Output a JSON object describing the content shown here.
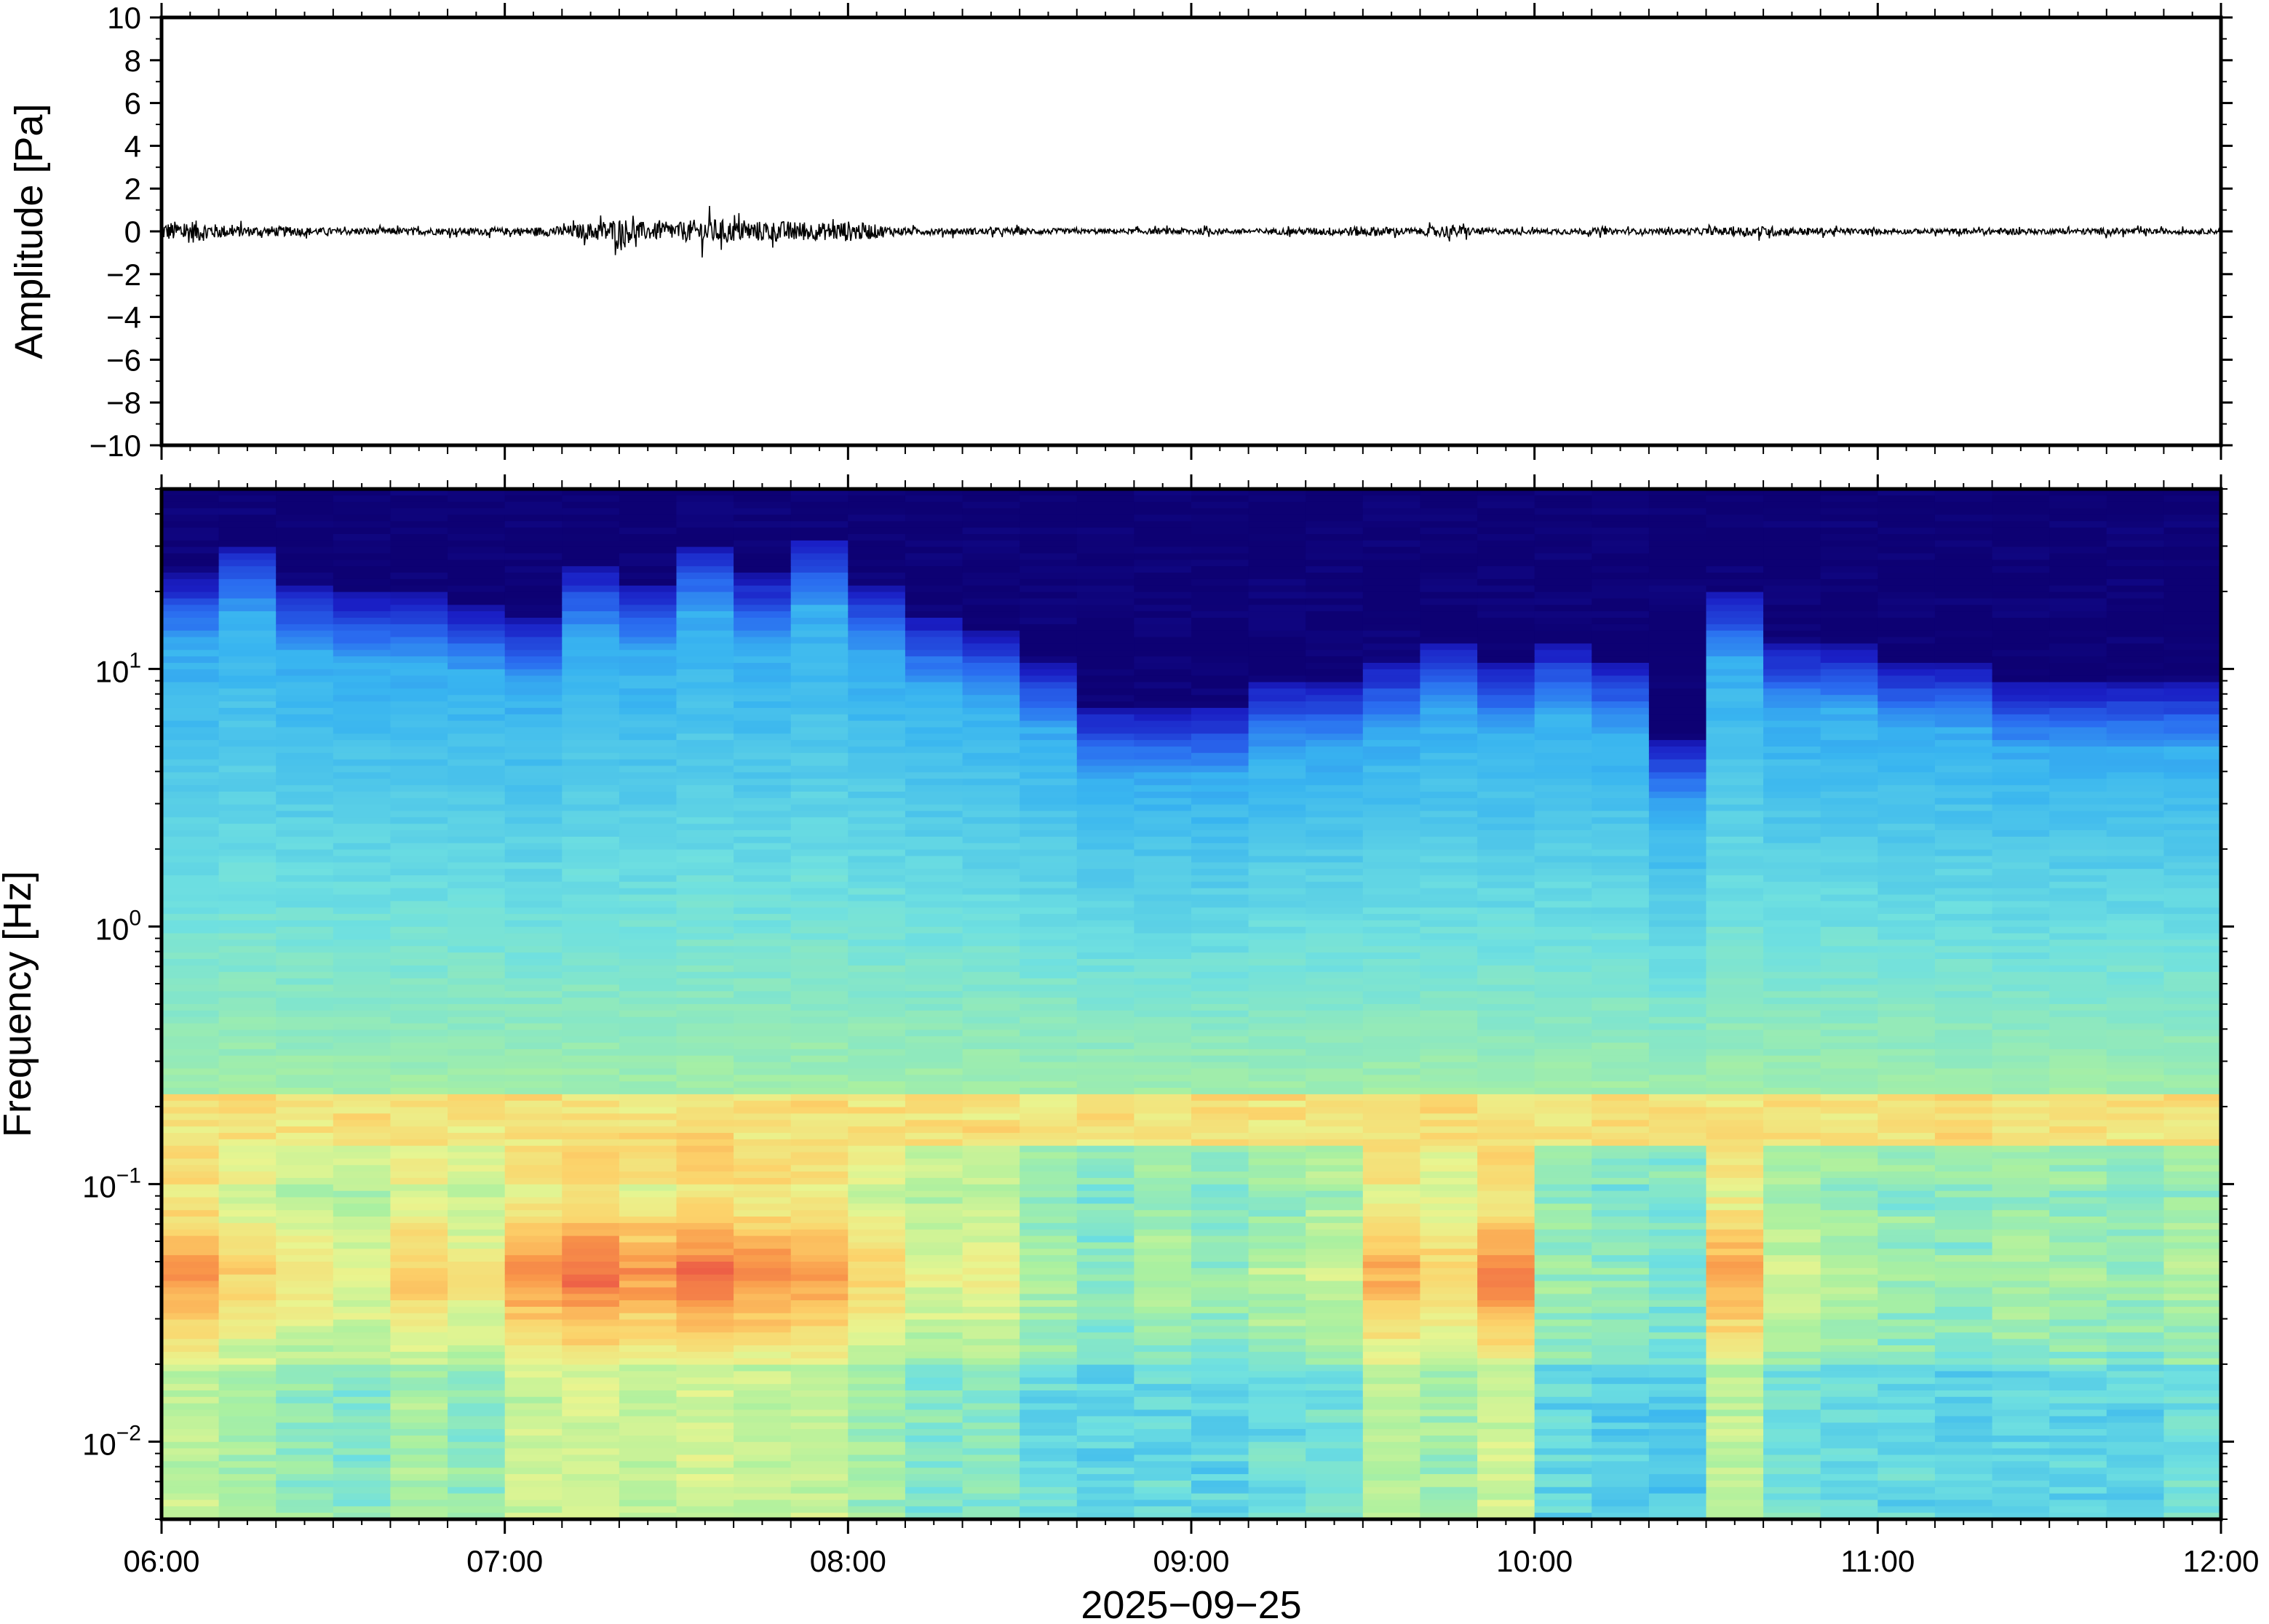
{
  "chart_data": [
    {
      "type": "line",
      "ylabel": "Amplitude [Pa]",
      "ylim": [
        -10,
        10
      ],
      "yticks": [
        10,
        8,
        6,
        4,
        2,
        0,
        -2,
        -4,
        -6,
        -8,
        -10
      ],
      "ytick_labels": [
        "10",
        "8",
        "6",
        "4",
        "2",
        "0",
        "−2",
        "−4",
        "−6",
        "−8",
        "−10"
      ],
      "xlim": [
        "06:00",
        "12:00"
      ],
      "line_color": "#000000",
      "series": [
        {
          "x": [
            "06:00",
            "06:05",
            "06:10",
            "06:15",
            "06:20",
            "06:30",
            "06:40",
            "06:50",
            "07:00",
            "07:10",
            "07:15",
            "07:20",
            "07:25",
            "07:30",
            "07:35",
            "07:40",
            "07:45",
            "07:50",
            "07:55",
            "08:00",
            "08:10",
            "08:20",
            "08:30",
            "08:40",
            "08:50",
            "09:00",
            "09:10",
            "09:20",
            "09:30",
            "09:40",
            "09:45",
            "09:50",
            "10:00",
            "10:10",
            "10:20",
            "10:30",
            "10:40",
            "10:50",
            "11:00",
            "11:10",
            "11:20",
            "11:30",
            "11:40",
            "11:50",
            "12:00"
          ],
          "values": [
            0.5,
            0.7,
            0.4,
            0.3,
            0.3,
            0.2,
            0.2,
            0.2,
            0.2,
            0.3,
            0.5,
            0.8,
            0.5,
            0.5,
            0.8,
            0.6,
            0.6,
            0.6,
            0.5,
            0.6,
            0.2,
            0.2,
            0.2,
            0.15,
            0.15,
            0.2,
            0.15,
            0.2,
            0.3,
            0.2,
            0.4,
            0.2,
            0.15,
            0.2,
            0.15,
            0.2,
            0.3,
            0.2,
            0.15,
            0.15,
            0.2,
            0.15,
            0.2,
            0.15,
            0.15
          ]
        }
      ]
    },
    {
      "type": "heatmap",
      "ylabel": "Frequency [Hz]",
      "xlabel": "2025−09−25",
      "yscale": "log",
      "ylim": [
        0.005,
        50
      ],
      "yticks": [
        0.01,
        0.1,
        1,
        10
      ],
      "ytick_labels": [
        {
          "base": "10",
          "exp": "−2"
        },
        {
          "base": "10",
          "exp": "−1"
        },
        {
          "base": "10",
          "exp": "0"
        },
        {
          "base": "10",
          "exp": "1"
        }
      ],
      "xlim": [
        "06:00",
        "12:00"
      ],
      "xtick_labels": [
        "06:00",
        "07:00",
        "08:00",
        "09:00",
        "10:00",
        "11:00",
        "12:00"
      ],
      "colormap": [
        "#0d0173",
        "#1a1fc5",
        "#2a6cf0",
        "#38b4f0",
        "#6fe0e0",
        "#aaf0a0",
        "#e8f590",
        "#fcd26a",
        "#f9984a",
        "#ec5a46"
      ],
      "time_columns": [
        "06:00",
        "06:10",
        "06:20",
        "06:30",
        "06:40",
        "06:50",
        "07:00",
        "07:10",
        "07:20",
        "07:30",
        "07:40",
        "07:50",
        "08:00",
        "08:10",
        "08:20",
        "08:30",
        "08:40",
        "08:50",
        "09:00",
        "09:10",
        "09:20",
        "09:30",
        "09:40",
        "09:50",
        "10:00",
        "10:10",
        "10:20",
        "10:30",
        "10:40",
        "10:50",
        "11:00",
        "11:10",
        "11:20",
        "11:30",
        "11:40",
        "11:50"
      ],
      "top_noise_edge_hz": [
        13,
        17,
        12,
        11,
        11,
        10,
        9,
        14,
        12,
        17,
        13,
        18,
        12,
        9,
        8,
        6,
        4,
        4,
        4,
        5,
        5,
        6,
        7,
        6,
        7,
        6,
        3,
        11,
        7,
        7,
        6,
        6,
        5,
        5,
        5,
        5
      ],
      "microbarom_band_hz": [
        0.14,
        0.22
      ],
      "low_band_hot_hz": [
        0.02,
        0.1
      ],
      "low_band_intensity": [
        0.9,
        0.78,
        0.72,
        0.68,
        0.8,
        0.72,
        0.92,
        0.98,
        0.9,
        0.96,
        0.92,
        0.9,
        0.78,
        0.66,
        0.7,
        0.56,
        0.5,
        0.56,
        0.52,
        0.58,
        0.62,
        0.86,
        0.78,
        0.94,
        0.54,
        0.5,
        0.48,
        0.88,
        0.62,
        0.58,
        0.54,
        0.52,
        0.56,
        0.54,
        0.52,
        0.58
      ]
    }
  ]
}
